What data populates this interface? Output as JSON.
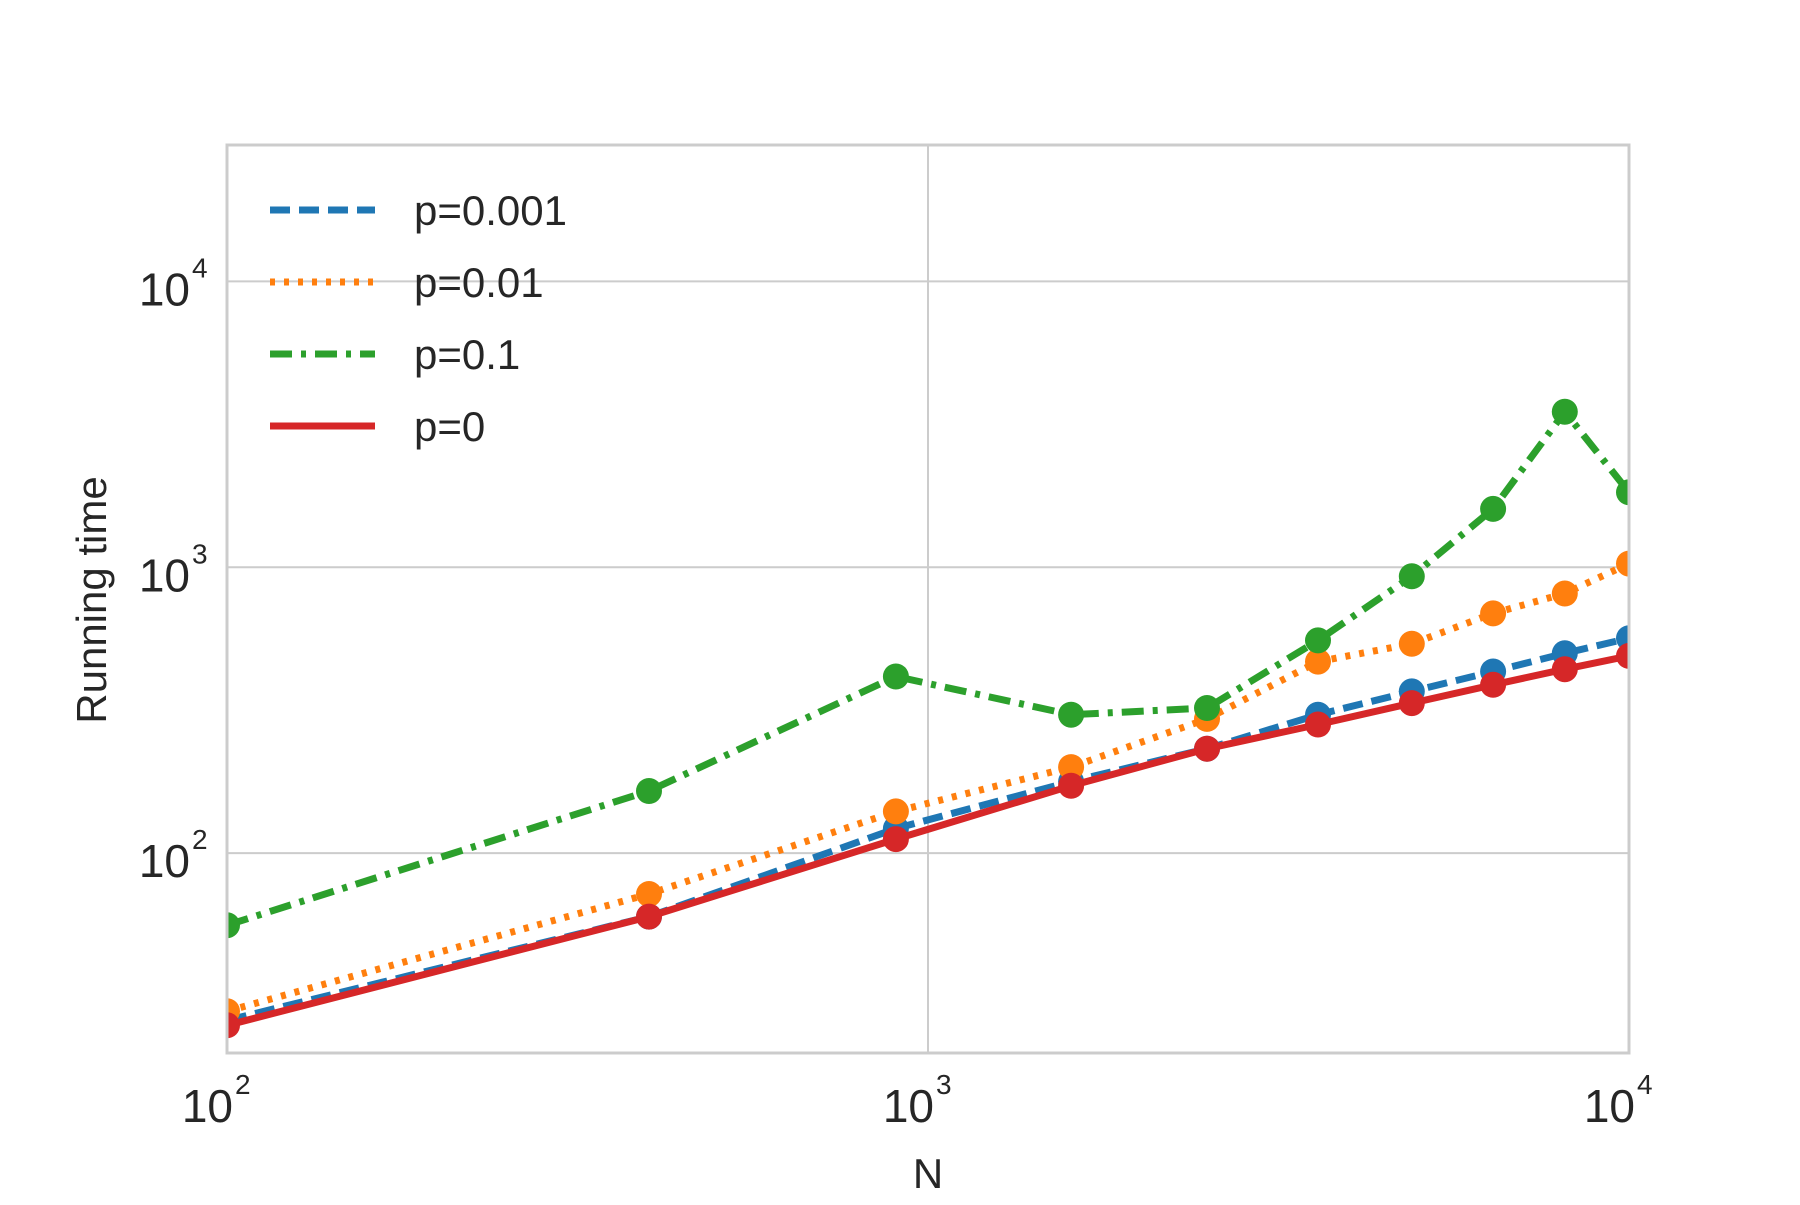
{
  "chart_data": {
    "type": "line",
    "title": "",
    "xlabel": "N",
    "ylabel": "Running time",
    "x_scale": "log",
    "y_scale": "log",
    "xlim": [
      100,
      10000
    ],
    "ylim": [
      20,
      30000
    ],
    "grid": true,
    "legend_position": "top-left",
    "x_ticks": [
      {
        "base": "10",
        "exp": "2",
        "value": 100
      },
      {
        "base": "10",
        "exp": "3",
        "value": 1000
      },
      {
        "base": "10",
        "exp": "4",
        "value": 10000
      }
    ],
    "y_ticks": [
      {
        "base": "10",
        "exp": "2",
        "value": 100
      },
      {
        "base": "10",
        "exp": "3",
        "value": 1000
      },
      {
        "base": "10",
        "exp": "4",
        "value": 10000
      }
    ],
    "x": [
      100,
      400,
      900,
      1600,
      2500,
      3600,
      4900,
      6400,
      8100,
      10000
    ],
    "series": [
      {
        "name": "p=0.001",
        "color": "#1f77b4",
        "dash": "dashed",
        "values": [
          26,
          60,
          122,
          178,
          232,
          305,
          368,
          432,
          500,
          565
        ]
      },
      {
        "name": "p=0.01",
        "color": "#ff7f0e",
        "dash": "dotted",
        "values": [
          28,
          72,
          140,
          200,
          295,
          468,
          540,
          690,
          810,
          1030
        ]
      },
      {
        "name": "p=0.1",
        "color": "#2ca02c",
        "dash": "dashdot",
        "values": [
          56,
          165,
          415,
          305,
          322,
          555,
          930,
          1600,
          3500,
          1830
        ]
      },
      {
        "name": "p=0",
        "color": "#d62728",
        "dash": "solid",
        "values": [
          25,
          60,
          112,
          172,
          232,
          282,
          335,
          388,
          440,
          490
        ]
      }
    ]
  }
}
